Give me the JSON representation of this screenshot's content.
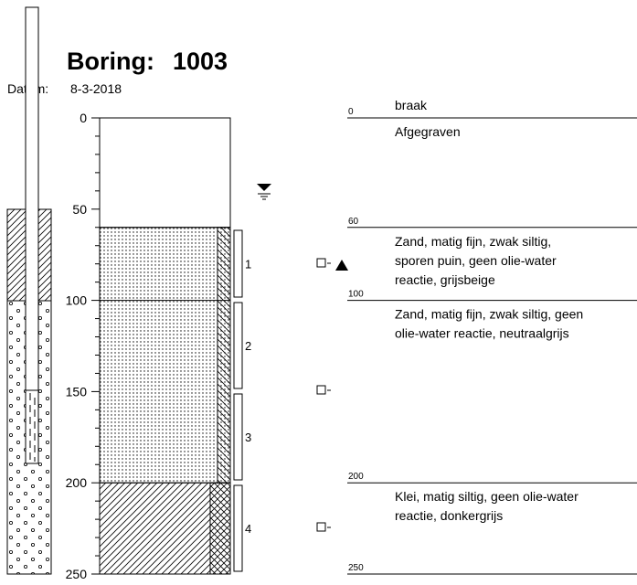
{
  "header": {
    "title": "Boring:",
    "id": "1003",
    "date_label": "Datum:",
    "date": "8-3-2018"
  },
  "depth_axis": {
    "ticks": [
      0,
      50,
      100,
      150,
      200,
      250
    ]
  },
  "samples": [
    "1",
    "2",
    "3",
    "4"
  ],
  "surface": "braak",
  "boundaries": [
    0,
    60,
    100,
    200,
    250
  ],
  "descriptions": [
    {
      "lines": [
        "Afgegraven"
      ]
    },
    {
      "lines": [
        "Zand, matig fijn, zwak siltig,",
        "sporen puin, geen olie-water",
        "reactie,  grijsbeige"
      ]
    },
    {
      "lines": [
        "Zand, matig fijn, zwak siltig, geen",
        "olie-water reactie, neutraalgrijs"
      ]
    },
    {
      "lines": [
        "Klei, matig siltig, geen olie-water",
        "reactie, donkergrijs"
      ]
    }
  ]
}
